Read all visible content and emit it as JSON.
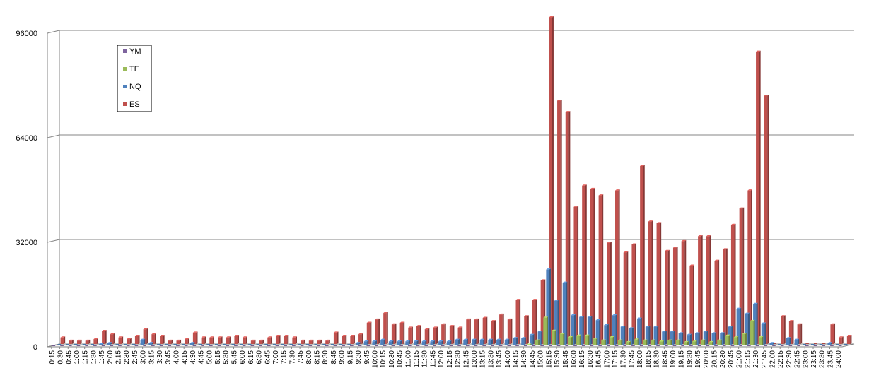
{
  "chart_data": {
    "type": "bar",
    "style": "3d-clustered-column",
    "title": "",
    "xlabel": "",
    "ylabel": "",
    "ylim": [
      0,
      96000
    ],
    "yticks": [
      "0",
      "32000",
      "64000",
      "96000"
    ],
    "grid": true,
    "legend_position": "top-left",
    "categories": [
      "0:15",
      "0:30",
      "0:45",
      "1:00",
      "1:15",
      "1:30",
      "1:45",
      "2:00",
      "2:15",
      "2:30",
      "2:45",
      "3:00",
      "3:15",
      "3:30",
      "3:45",
      "4:00",
      "4:15",
      "4:30",
      "4:45",
      "5:00",
      "5:15",
      "5:30",
      "5:45",
      "6:00",
      "6:15",
      "6:30",
      "6:45",
      "7:00",
      "7:15",
      "7:30",
      "7:45",
      "8:00",
      "8:15",
      "8:30",
      "8:45",
      "9:00",
      "9:15",
      "9:30",
      "9:45",
      "10:00",
      "10:15",
      "10:30",
      "10:45",
      "11:00",
      "11:15",
      "11:30",
      "11:45",
      "12:00",
      "12:15",
      "12:30",
      "12:45",
      "13:00",
      "13:15",
      "13:30",
      "13:45",
      "14:00",
      "14:15",
      "14:30",
      "14:45",
      "15:00",
      "15:15",
      "15:30",
      "15:45",
      "16:00",
      "16:15",
      "16:30",
      "16:45",
      "17:00",
      "17:15",
      "17:30",
      "17:45",
      "18:00",
      "18:15",
      "18:30",
      "18:45",
      "19:00",
      "19:15",
      "19:30",
      "19:45",
      "20:00",
      "20:15",
      "20:30",
      "20:45",
      "21:00",
      "21:15",
      "21:30",
      "21:45",
      "22:00",
      "22:15",
      "22:30",
      "22:45",
      "23:00",
      "23:15",
      "23:30",
      "23:45",
      "24:00"
    ],
    "series": [
      {
        "name": "YM",
        "color": "#7E649E",
        "values": [
          0,
          0,
          0,
          0,
          0,
          0,
          0,
          0,
          0,
          0,
          0,
          0,
          0,
          0,
          0,
          0,
          0,
          0,
          0,
          0,
          0,
          0,
          0,
          0,
          0,
          0,
          0,
          0,
          0,
          0,
          0,
          0,
          0,
          0,
          0,
          0,
          0,
          0,
          0,
          0,
          0,
          0,
          0,
          0,
          0,
          0,
          0,
          0,
          0,
          0,
          0,
          0,
          0,
          0,
          0,
          0,
          0,
          0,
          0,
          0,
          0,
          0,
          0,
          0,
          0,
          0,
          0,
          0,
          0,
          0,
          0,
          0,
          0,
          0,
          0,
          0,
          0,
          0,
          0,
          0,
          0,
          0,
          0,
          0,
          0,
          0,
          0,
          0,
          0,
          0,
          0,
          0,
          0,
          0,
          0,
          0
        ]
      },
      {
        "name": "TF",
        "color": "#9BBB59",
        "values": [
          0,
          0,
          0,
          0,
          0,
          0,
          0,
          0,
          0,
          0,
          0,
          0,
          0,
          0,
          0,
          0,
          0,
          0,
          0,
          0,
          0,
          0,
          0,
          0,
          0,
          0,
          0,
          0,
          0,
          0,
          0,
          0,
          0,
          0,
          0,
          0,
          0,
          0,
          0,
          0,
          0,
          0,
          0,
          0,
          0,
          0,
          0,
          0,
          0,
          0,
          0,
          0,
          0,
          0,
          0,
          0,
          0,
          200,
          1500,
          8500,
          4500,
          3500,
          2500,
          3000,
          3000,
          2000,
          1500,
          2500,
          1500,
          1000,
          1800,
          1500,
          1500,
          1200,
          1500,
          1500,
          1000,
          1200,
          1500,
          1000,
          1500,
          3000,
          2500,
          3500,
          7500,
          2500,
          0,
          0,
          0,
          0,
          0,
          0,
          0,
          0,
          0,
          0
        ]
      },
      {
        "name": "NQ",
        "color": "#4F81BD",
        "values": [
          0,
          0,
          0,
          0,
          0,
          200,
          500,
          0,
          0,
          0,
          1500,
          500,
          0,
          0,
          0,
          0,
          500,
          0,
          0,
          0,
          0,
          0,
          0,
          0,
          0,
          0,
          0,
          0,
          0,
          0,
          0,
          0,
          0,
          0,
          0,
          0,
          500,
          1000,
          1000,
          1500,
          1000,
          1000,
          1000,
          1000,
          1000,
          1000,
          1000,
          1000,
          1500,
          1500,
          1500,
          1500,
          1500,
          1500,
          1500,
          2000,
          2000,
          3000,
          4000,
          23000,
          13500,
          19000,
          9000,
          8500,
          8500,
          7500,
          6000,
          9000,
          5500,
          5000,
          8000,
          5500,
          5500,
          4000,
          4000,
          3500,
          3000,
          3500,
          4000,
          3500,
          3500,
          5500,
          11000,
          9500,
          12500,
          6500,
          500,
          0,
          2000,
          1500,
          0,
          0,
          0,
          500,
          0,
          0
        ]
      },
      {
        "name": "ES",
        "color": "#C0504D",
        "values": [
          2000,
          1000,
          1000,
          1000,
          1500,
          4000,
          3000,
          2000,
          1500,
          2500,
          4500,
          3000,
          2500,
          1000,
          1000,
          1500,
          3500,
          2000,
          2000,
          2000,
          2000,
          2500,
          2000,
          1000,
          1000,
          2000,
          2500,
          2500,
          2000,
          1000,
          1000,
          1000,
          1000,
          3500,
          2500,
          2500,
          3000,
          6500,
          7500,
          9500,
          6000,
          6500,
          5000,
          5500,
          4500,
          5000,
          6000,
          5500,
          5000,
          7500,
          7500,
          8000,
          7000,
          9000,
          7500,
          13500,
          8500,
          13500,
          19500,
          100000,
          74500,
          71000,
          42000,
          48500,
          47500,
          45500,
          31000,
          47000,
          28000,
          30500,
          54500,
          37500,
          37000,
          28500,
          29500,
          31500,
          24000,
          33000,
          33000,
          25500,
          29000,
          36500,
          41500,
          47000,
          89500,
          76000,
          0,
          8500,
          7000,
          6000,
          0,
          0,
          0,
          6000,
          2000,
          2500
        ]
      }
    ]
  }
}
